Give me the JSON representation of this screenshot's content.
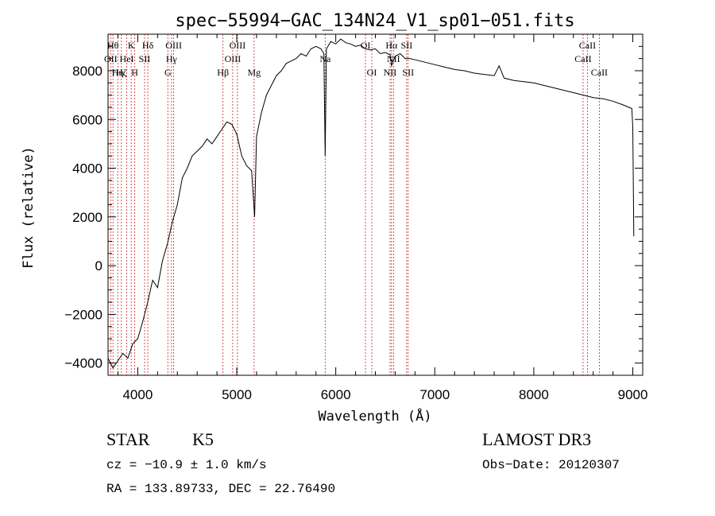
{
  "chart_data": {
    "type": "line",
    "title": "spec−55994−GAC_134N24_V1_sp01−051.fits",
    "xlabel": "Wavelength (Å)",
    "ylabel": "Flux (relative)",
    "xlim": [
      3700,
      9100
    ],
    "ylim": [
      -4500,
      9500
    ],
    "xticks": [
      4000,
      5000,
      6000,
      7000,
      8000,
      9000
    ],
    "yticks": [
      -4000,
      -2000,
      0,
      2000,
      4000,
      6000,
      8000
    ],
    "series": [
      {
        "name": "flux",
        "x": [
          3700,
          3750,
          3800,
          3850,
          3900,
          3950,
          4000,
          4050,
          4100,
          4150,
          4200,
          4250,
          4300,
          4350,
          4400,
          4450,
          4500,
          4550,
          4600,
          4650,
          4700,
          4750,
          4800,
          4850,
          4900,
          4950,
          5000,
          5050,
          5100,
          5150,
          5180,
          5200,
          5250,
          5300,
          5350,
          5400,
          5450,
          5500,
          5550,
          5600,
          5650,
          5700,
          5750,
          5800,
          5850,
          5880,
          5893,
          5906,
          5950,
          6000,
          6050,
          6100,
          6150,
          6200,
          6250,
          6300,
          6350,
          6400,
          6450,
          6500,
          6550,
          6563,
          6600,
          6650,
          6700,
          6750,
          6800,
          6900,
          7000,
          7100,
          7200,
          7300,
          7400,
          7500,
          7600,
          7650,
          7700,
          7800,
          7900,
          8000,
          8100,
          8200,
          8300,
          8400,
          8500,
          8600,
          8700,
          8800,
          8900,
          8990,
          9000,
          9010
        ],
        "y": [
          -3800,
          -4200,
          -3900,
          -3600,
          -3800,
          -3200,
          -3000,
          -2300,
          -1500,
          -600,
          -900,
          200,
          900,
          1800,
          2500,
          3600,
          4000,
          4500,
          4700,
          4900,
          5200,
          5000,
          5300,
          5600,
          5900,
          5800,
          5400,
          4500,
          4100,
          3900,
          2000,
          5300,
          6300,
          7000,
          7400,
          7800,
          8000,
          8300,
          8400,
          8500,
          8700,
          8600,
          8900,
          9000,
          8900,
          8700,
          4500,
          8900,
          9200,
          9100,
          9300,
          9150,
          9100,
          9000,
          9050,
          8900,
          8850,
          8900,
          8700,
          8750,
          8650,
          8200,
          8600,
          8700,
          8500,
          8500,
          8450,
          8350,
          8250,
          8150,
          8050,
          8000,
          7900,
          7850,
          7800,
          8200,
          7700,
          7600,
          7550,
          7500,
          7400,
          7300,
          7200,
          7100,
          7000,
          6900,
          6850,
          6750,
          6600,
          6450,
          5700,
          1200
        ]
      }
    ],
    "line_markers": [
      {
        "wave": 3727,
        "label": "OII",
        "tier": 2
      },
      {
        "wave": 3750,
        "label": "Hθ",
        "tier": 1
      },
      {
        "wave": 3798,
        "label": "Hη",
        "tier": 3
      },
      {
        "wave": 3835,
        "label": "Hζ",
        "tier": 3
      },
      {
        "wave": 3889,
        "label": "HeI",
        "tier": 2
      },
      {
        "wave": 3934,
        "label": "K",
        "tier": 1
      },
      {
        "wave": 3969,
        "label": "H",
        "tier": 3
      },
      {
        "wave": 4069,
        "label": "SII",
        "tier": 2
      },
      {
        "wave": 4102,
        "label": "Hδ",
        "tier": 1
      },
      {
        "wave": 4304,
        "label": "G",
        "tier": 3
      },
      {
        "wave": 4341,
        "label": "Hγ",
        "tier": 2
      },
      {
        "wave": 4363,
        "label": "OIII",
        "tier": 1
      },
      {
        "wave": 4861,
        "label": "Hβ",
        "tier": 3
      },
      {
        "wave": 4959,
        "label": "OIII",
        "tier": 2
      },
      {
        "wave": 5007,
        "label": "OIII",
        "tier": 1
      },
      {
        "wave": 5175,
        "label": "Mg",
        "tier": 3
      },
      {
        "wave": 5893,
        "label": "Na",
        "tier": 2
      },
      {
        "wave": 6300,
        "label": "OI",
        "tier": 1
      },
      {
        "wave": 6364,
        "label": "OI",
        "tier": 3
      },
      {
        "wave": 6548,
        "label": "NII",
        "tier": 3
      },
      {
        "wave": 6563,
        "label": "Hα",
        "tier": 1
      },
      {
        "wave": 6583,
        "label": "NII",
        "tier": 2
      },
      {
        "wave": 6716,
        "label": "SII",
        "tier": 1
      },
      {
        "wave": 6731,
        "label": "SII",
        "tier": 3
      },
      {
        "wave": 8498,
        "label": "CaII",
        "tier": 2
      },
      {
        "wave": 8542,
        "label": "CaII",
        "tier": 1
      },
      {
        "wave": 8662,
        "label": "CaII",
        "tier": 3
      }
    ]
  },
  "info": {
    "object_class": "STAR",
    "subclass": "K5",
    "survey": "LAMOST DR3",
    "cz": "cz = −10.9 ± 1.0 km/s",
    "obs_date": "Obs−Date: 20120307",
    "coords": "RA = 133.89733, DEC =  22.76490"
  },
  "colors": {
    "marker_line": "#cc2222",
    "spectrum": "#000000",
    "axis": "#000000"
  }
}
